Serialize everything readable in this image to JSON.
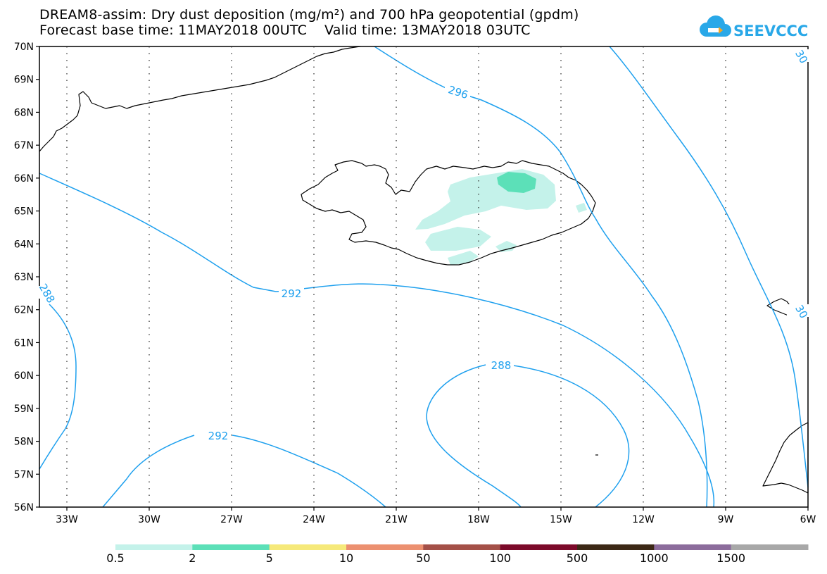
{
  "header": {
    "title_line1": "DREAM8-assim: Dry dust deposition (mg/m²) and 700 hPa geopotential (gpdm)",
    "title_line2": "Forecast base time: 11MAY2018 00UTC    Valid time: 13MAY2018 03UTC",
    "logo_text": "SEEVCCC"
  },
  "map": {
    "lat_labels": [
      "70N",
      "69N",
      "68N",
      "67N",
      "66N",
      "65N",
      "64N",
      "63N",
      "62N",
      "61N",
      "60N",
      "59N",
      "58N",
      "57N",
      "56N"
    ],
    "lon_labels": [
      "33W",
      "30W",
      "27W",
      "24W",
      "21W",
      "18W",
      "15W",
      "12W",
      "9W",
      "6W"
    ],
    "contour_labels": [
      "296",
      "292",
      "292",
      "288",
      "288",
      "292",
      "30",
      "30"
    ],
    "contour_color": "#1ea0ee",
    "coast_color": "#000000"
  },
  "colorbar": {
    "colors": [
      "#c4f2ea",
      "#5ce0b8",
      "#f6e97a",
      "#ec9070",
      "#a45048",
      "#7c0a2a",
      "#3c2816",
      "#8c6c9c",
      "#a8a8a8"
    ],
    "labels": [
      "0.5",
      "2",
      "5",
      "10",
      "50",
      "100",
      "500",
      "1000",
      "1500"
    ]
  }
}
